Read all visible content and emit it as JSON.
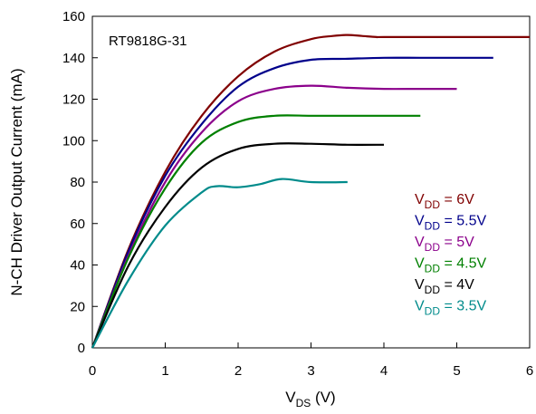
{
  "chart_data": {
    "type": "line",
    "title": "",
    "annotation": "RT9818G-31",
    "xlabel": {
      "main": "V",
      "sub": "DS",
      "suffix": " (V)"
    },
    "ylabel": "N-CH Driver Output Current (mA)",
    "xlim": [
      0,
      6
    ],
    "ylim": [
      0,
      160
    ],
    "xticks": [
      0,
      1,
      2,
      3,
      4,
      5,
      6
    ],
    "yticks": [
      0,
      20,
      40,
      60,
      80,
      100,
      120,
      140,
      160
    ],
    "grid": false,
    "legend_position": "bottom-right",
    "series": [
      {
        "name": "V_DD = 6V",
        "label_main": "V",
        "label_sub": "DD",
        "label_suffix": " = 6V",
        "color": "#800000",
        "x": [
          0,
          0.5,
          1,
          1.5,
          2,
          2.5,
          3,
          3.3,
          3.5,
          3.7,
          3.9,
          4,
          5,
          6
        ],
        "y": [
          0,
          48,
          85,
          112,
          131,
          143,
          149,
          150.5,
          151,
          150.5,
          150,
          150,
          150,
          150
        ]
      },
      {
        "name": "V_DD = 5.5V",
        "label_main": "V",
        "label_sub": "DD",
        "label_suffix": " = 5.5V",
        "color": "#00008B",
        "x": [
          0,
          0.5,
          1,
          1.5,
          2,
          2.5,
          3,
          3.5,
          4,
          4.5,
          5,
          5.5
        ],
        "y": [
          0,
          47,
          83,
          108,
          126,
          135,
          139,
          139.5,
          140,
          140,
          140,
          140
        ]
      },
      {
        "name": "V_DD = 5V",
        "label_main": "V",
        "label_sub": "DD",
        "label_suffix": " = 5V",
        "color": "#8B008B",
        "x": [
          0,
          0.5,
          1,
          1.5,
          2,
          2.5,
          3,
          3.5,
          4,
          4.5,
          5
        ],
        "y": [
          0,
          45,
          80,
          104,
          119,
          125,
          126.5,
          125.5,
          125,
          125,
          125
        ]
      },
      {
        "name": "V_DD = 4.5V",
        "label_main": "V",
        "label_sub": "DD",
        "label_suffix": " = 4.5V",
        "color": "#008000",
        "x": [
          0,
          0.5,
          1,
          1.5,
          2,
          2.5,
          3,
          3.5,
          4,
          4.5
        ],
        "y": [
          0,
          44,
          77,
          99,
          109,
          112,
          112,
          112,
          112,
          112
        ]
      },
      {
        "name": "V_DD = 4V",
        "label_main": "V",
        "label_sub": "DD",
        "label_suffix": " = 4V",
        "color": "#000000",
        "x": [
          0,
          0.5,
          1,
          1.5,
          2,
          2.5,
          3,
          3.5,
          4
        ],
        "y": [
          0,
          40,
          68,
          87,
          96,
          98.5,
          98.5,
          98,
          98
        ]
      },
      {
        "name": "V_DD = 3.5V",
        "label_main": "V",
        "label_sub": "DD",
        "label_suffix": " = 3.5V",
        "color": "#008B8B",
        "x": [
          0,
          0.5,
          1,
          1.5,
          1.7,
          2,
          2.3,
          2.6,
          3,
          3.5
        ],
        "y": [
          0,
          33,
          59,
          75,
          78,
          77.5,
          79,
          81.5,
          80,
          80
        ]
      }
    ]
  }
}
